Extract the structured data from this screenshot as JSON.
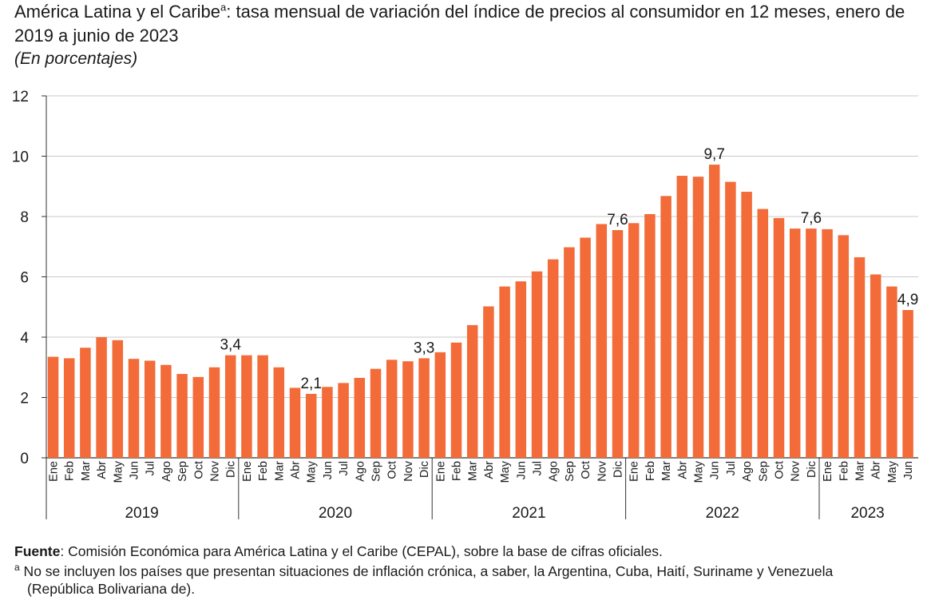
{
  "header": {
    "title_part1": "América Latina y el Caribe",
    "title_sup": "a",
    "title_part2": ": tasa mensual de variación del índice de precios al consumidor en 12 meses, enero de 2019 a junio de 2023",
    "subtitle": "(En porcentajes)"
  },
  "footer": {
    "source_label": "Fuente",
    "source_text": ":  Comisión Económica para América Latina y el Caribe (CEPAL), sobre la base de cifras oficiales.",
    "note_mark": "a",
    "note_line1": " No se incluyen los países que presentan situaciones de inflación crónica, a saber, la Argentina, Cuba, Haití, Suriname y Venezuela",
    "note_line2": "(República Bolivariana de)."
  },
  "colors": {
    "bar": "#f26b38",
    "grid": "#c8c8c8",
    "axis": "#333333"
  },
  "chart_data": {
    "type": "bar",
    "ylim": [
      0,
      12
    ],
    "yticks": [
      0,
      2,
      4,
      6,
      8,
      10,
      12
    ],
    "grid": true,
    "groups": [
      {
        "label": "2019",
        "months": [
          "Ene",
          "Feb",
          "Mar",
          "Abr",
          "May",
          "Jun",
          "Jul",
          "Ago",
          "Sep",
          "Oct",
          "Nov",
          "Dic"
        ],
        "values": [
          3.35,
          3.3,
          3.65,
          4.0,
          3.9,
          3.28,
          3.22,
          3.08,
          2.78,
          2.68,
          3.0,
          3.4
        ]
      },
      {
        "label": "2020",
        "months": [
          "Ene",
          "Feb",
          "Mar",
          "Abr",
          "May",
          "Jun",
          "Jul",
          "Ago",
          "Sep",
          "Oct",
          "Nov",
          "Dic"
        ],
        "values": [
          3.4,
          3.4,
          3.0,
          2.32,
          2.12,
          2.35,
          2.48,
          2.65,
          2.95,
          3.25,
          3.2,
          3.3
        ]
      },
      {
        "label": "2021",
        "months": [
          "Ene",
          "Feb",
          "Mar",
          "Abr",
          "May",
          "Jun",
          "Jul",
          "Ago",
          "Sep",
          "Oct",
          "Nov",
          "Dic"
        ],
        "values": [
          3.5,
          3.82,
          4.4,
          5.02,
          5.68,
          5.85,
          6.18,
          6.58,
          6.98,
          7.3,
          7.75,
          7.55
        ]
      },
      {
        "label": "2022",
        "months": [
          "Ene",
          "Feb",
          "Mar",
          "Abr",
          "May",
          "Jun",
          "Jul",
          "Ago",
          "Sep",
          "Oct",
          "Nov",
          "Dic"
        ],
        "values": [
          7.78,
          8.08,
          8.68,
          9.35,
          9.32,
          9.72,
          9.15,
          8.82,
          8.25,
          7.95,
          7.6,
          7.6
        ]
      },
      {
        "label": "2023",
        "months": [
          "Ene",
          "Feb",
          "Mar",
          "Abr",
          "May",
          "Jun"
        ],
        "values": [
          7.58,
          7.38,
          6.65,
          6.08,
          5.68,
          4.9
        ]
      }
    ],
    "data_labels": [
      {
        "group": 0,
        "month": 11,
        "text": "3,4"
      },
      {
        "group": 1,
        "month": 4,
        "text": "2,1"
      },
      {
        "group": 1,
        "month": 11,
        "text": "3,3"
      },
      {
        "group": 2,
        "month": 11,
        "text": "7,6"
      },
      {
        "group": 3,
        "month": 5,
        "text": "9,7"
      },
      {
        "group": 3,
        "month": 11,
        "text": "7,6"
      },
      {
        "group": 4,
        "month": 5,
        "text": "4,9"
      }
    ]
  }
}
